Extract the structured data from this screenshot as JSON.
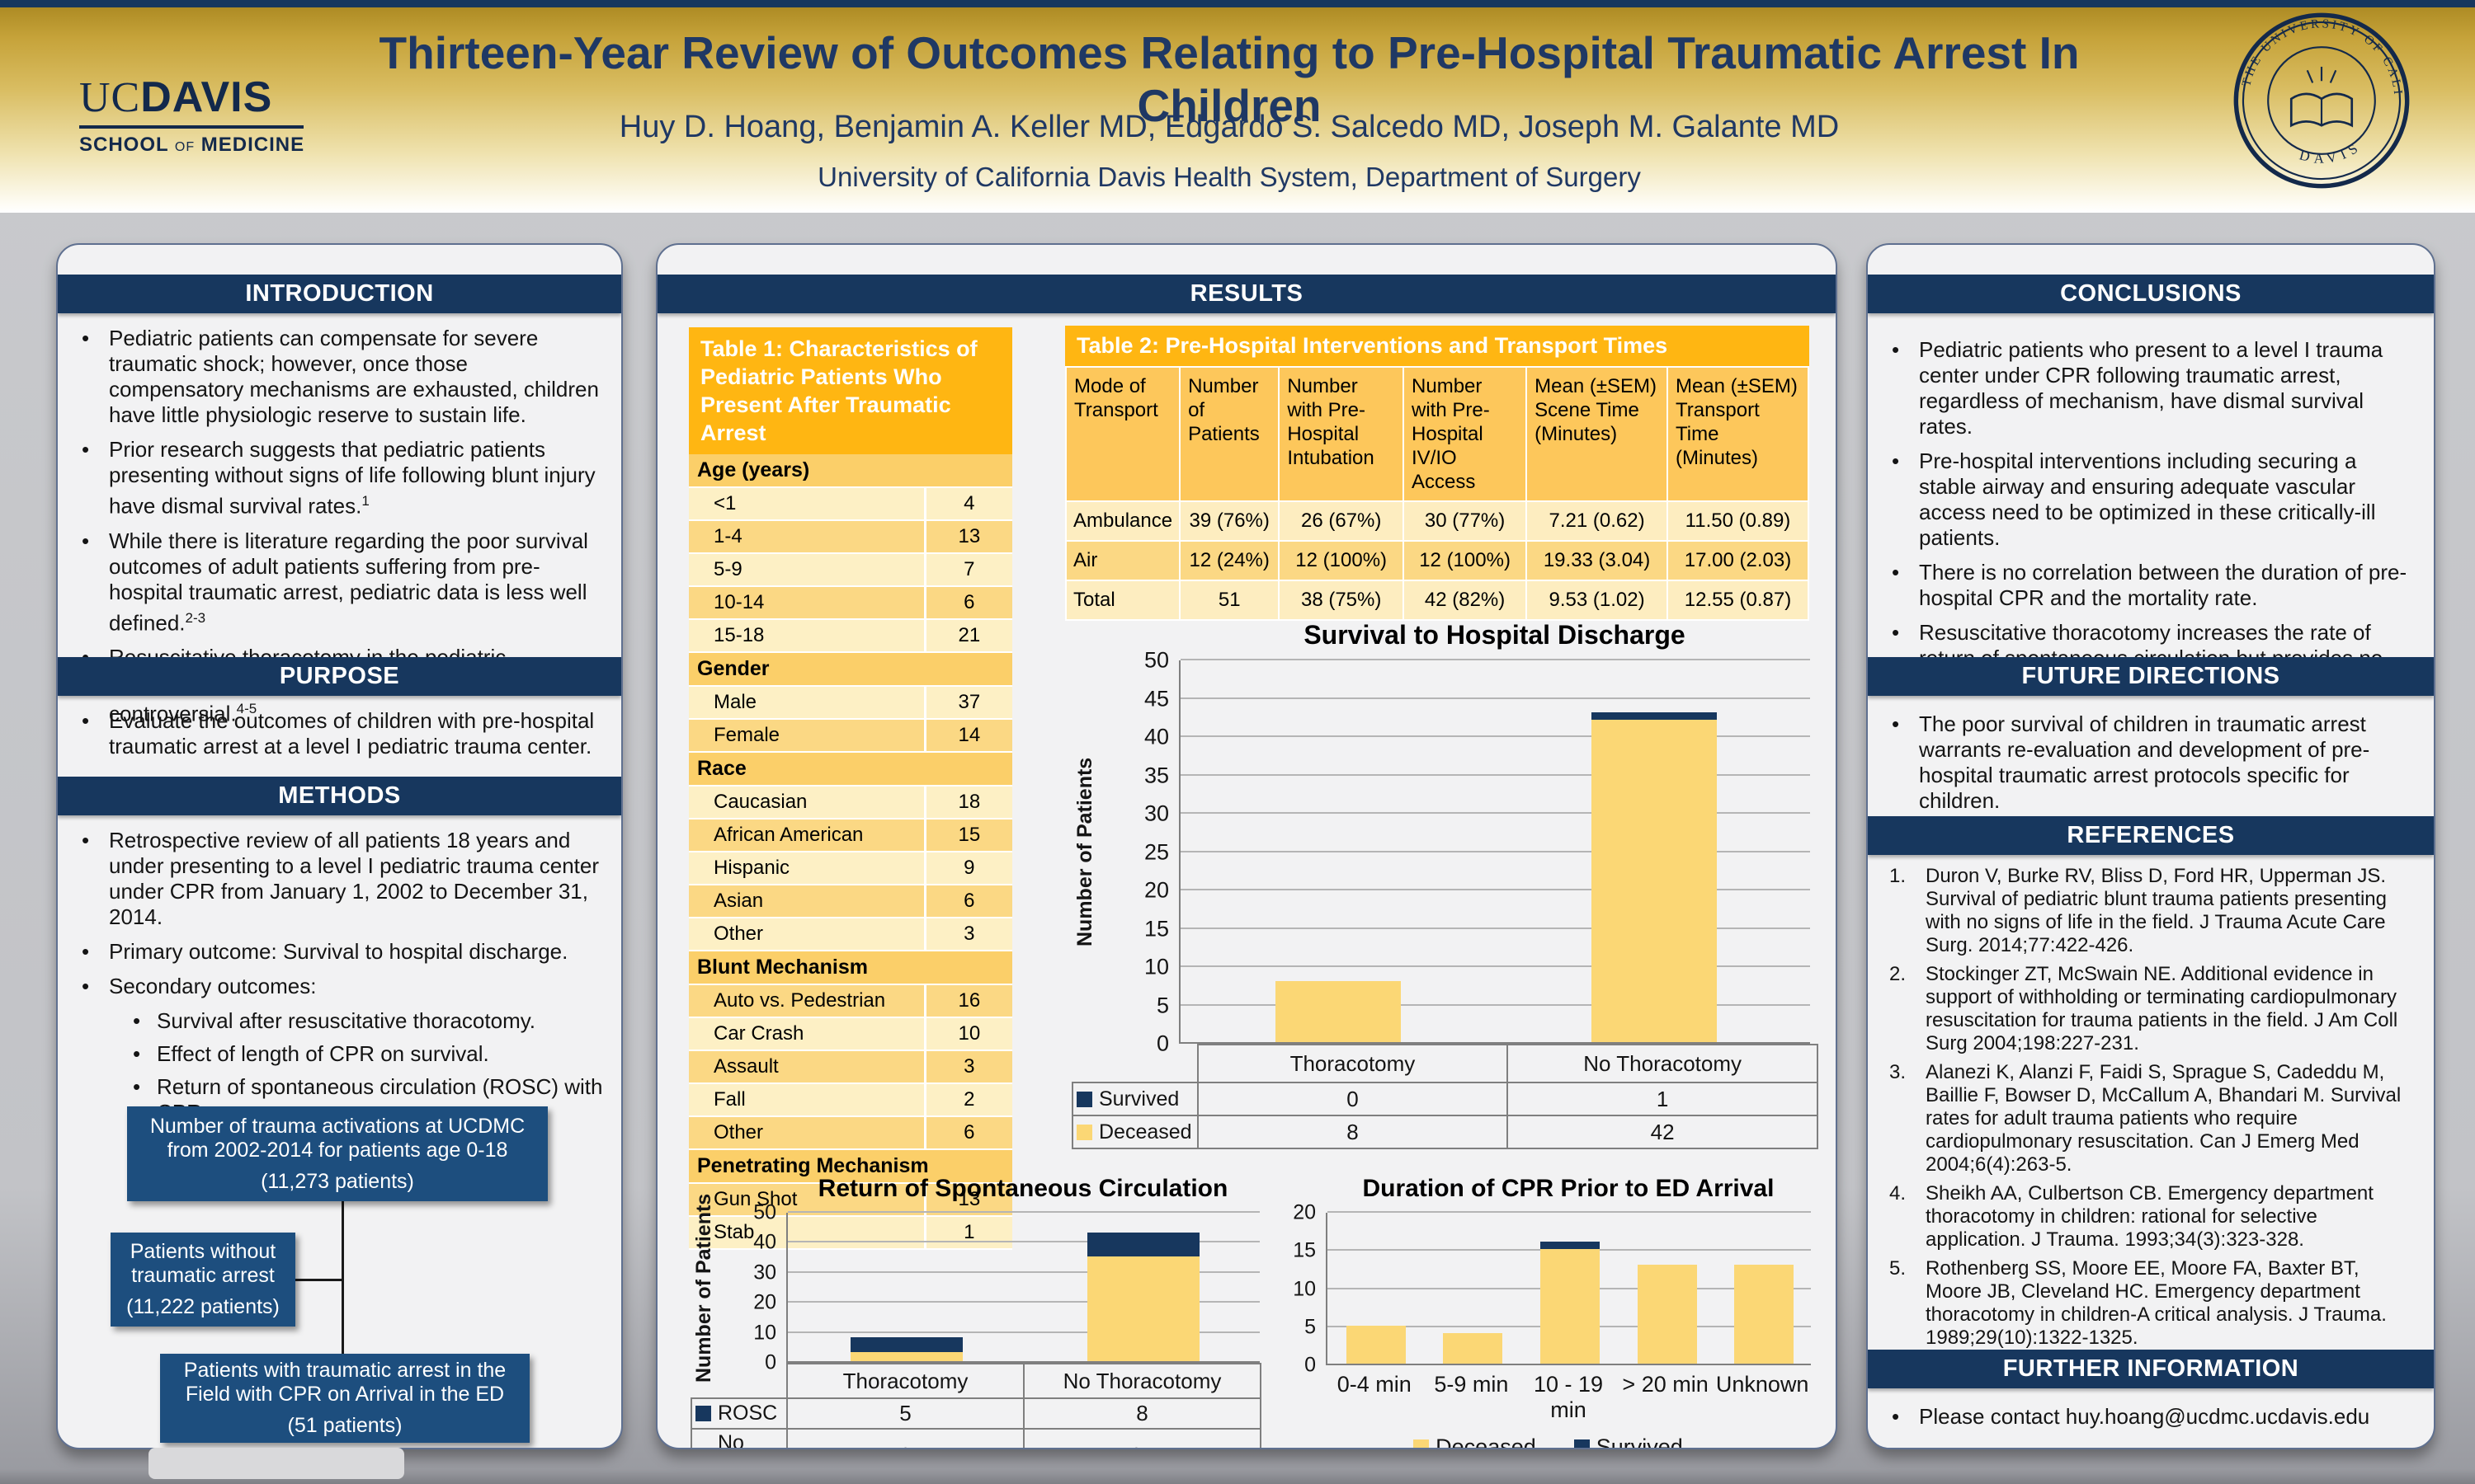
{
  "header": {
    "title": "Thirteen-Year Review of Outcomes Relating to Pre-Hospital Traumatic Arrest In Children",
    "authors": "Huy D. Hoang, Benjamin A. Keller MD, Edgardo S. Salcedo MD, Joseph M. Galante MD",
    "affiliation": "University of California Davis Health System, Department of Surgery",
    "logo": {
      "uc": "UC",
      "davis": "DAVIS",
      "school": "SCHOOL",
      "of": "OF",
      "medicine": "MEDICINE"
    },
    "seal": {
      "ring_text": "THE UNIVERSITY OF CALIFORNIA",
      "bottom_text": "DAVIS"
    }
  },
  "colors": {
    "navy": "#17375E",
    "navy_box": "#1D4E7E",
    "title_navy": "#1F3864",
    "gold": "#FFB612",
    "amber_header": "#FDC75B",
    "subheader": "#FBCF69",
    "row_light": "#FDF0C5",
    "row_dark": "#FBD884",
    "bar_yellow": "#FBD775",
    "bar_navy": "#17375E"
  },
  "left": {
    "intro": {
      "title": "INTRODUCTION",
      "bullets": [
        {
          "text": "Pediatric patients can compensate for severe traumatic shock; however, once those compensatory mechanisms are exhausted, children have little physiologic reserve to sustain life."
        },
        {
          "text": "Prior research suggests that pediatric patients presenting without signs of life following blunt injury have dismal survival rates.",
          "sup": "1"
        },
        {
          "text": "While there is literature regarding the poor survival outcomes of adult patients suffering from pre-hospital traumatic arrest, pediatric data is less well defined.",
          "sup": "2-3"
        },
        {
          "text": "Resuscitative thoracotomy in the pediatric population is associated with poor outcomes and is controversial.",
          "sup": "4-5"
        }
      ]
    },
    "purpose": {
      "title": "PURPOSE",
      "bullets": [
        {
          "text": "Evaluate the outcomes of children with pre-hospital traumatic arrest at a level I pediatric trauma center."
        }
      ]
    },
    "methods": {
      "title": "METHODS",
      "bullets": [
        {
          "text": "Retrospective review of all patients 18 years and under presenting to a level I pediatric trauma center under CPR from January 1, 2002 to December 31, 2014."
        },
        {
          "text": "Primary outcome: Survival to hospital discharge."
        },
        {
          "text": "Secondary outcomes:",
          "subs": [
            "Survival after resuscitative thoracotomy.",
            "Effect of length of CPR on survival.",
            "Return of spontaneous circulation (ROSC) with CPR."
          ]
        }
      ]
    },
    "flowchart": {
      "box1": {
        "text": "Number of trauma activations at UCDMC from 2002-2014 for patients age 0-18",
        "count": "(11,273 patients)"
      },
      "box2": {
        "text": "Patients without traumatic arrest",
        "count": "(11,222 patients)"
      },
      "box3": {
        "text": "Patients with traumatic arrest in the Field with CPR on Arrival in the ED",
        "count": "(51 patients)"
      }
    }
  },
  "middle": {
    "results_title": "RESULTS",
    "table1": {
      "title": "Table 1: Characteristics of Pediatric Patients Who Present After Traumatic Arrest",
      "sections": [
        {
          "header": "Age (years)",
          "rows": [
            [
              "<1",
              "4"
            ],
            [
              "1-4",
              "13"
            ],
            [
              "5-9",
              "7"
            ],
            [
              "10-14",
              "6"
            ],
            [
              "15-18",
              "21"
            ]
          ]
        },
        {
          "header": "Gender",
          "rows": [
            [
              "Male",
              "37"
            ],
            [
              "Female",
              "14"
            ]
          ]
        },
        {
          "header": "Race",
          "rows": [
            [
              "Caucasian",
              "18"
            ],
            [
              "African American",
              "15"
            ],
            [
              "Hispanic",
              "9"
            ],
            [
              "Asian",
              "6"
            ],
            [
              "Other",
              "3"
            ]
          ]
        },
        {
          "header": "Blunt Mechanism",
          "rows": [
            [
              "Auto vs. Pedestrian",
              "16"
            ],
            [
              "Car Crash",
              "10"
            ],
            [
              "Assault",
              "3"
            ],
            [
              "Fall",
              "2"
            ],
            [
              "Other",
              "6"
            ]
          ]
        },
        {
          "header": "Penetrating Mechanism",
          "rows": [
            [
              "Gun Shot",
              "13"
            ],
            [
              "Stab",
              "1"
            ]
          ]
        }
      ]
    },
    "table2": {
      "title": "Table 2: Pre-Hospital Interventions and Transport Times",
      "col_headers": [
        "Mode of Transport",
        "Number of Patients",
        "Number with Pre-Hospital Intubation",
        "Number with Pre-Hospital IV/IO Access",
        "Mean (±SEM) Scene Time (Minutes)",
        "Mean (±SEM) Transport Time (Minutes)"
      ],
      "rows": [
        [
          "Ambulance",
          "39 (76%)",
          "26 (67%)",
          "30 (77%)",
          "7.21 (0.62)",
          "11.50 (0.89)"
        ],
        [
          "Air",
          "12 (24%)",
          "12 (100%)",
          "12 (100%)",
          "19.33 (3.04)",
          "17.00 (2.03)"
        ],
        [
          "Total",
          "51",
          "38 (75%)",
          "42 (82%)",
          "9.53 (1.02)",
          "12.55 (0.87)"
        ]
      ]
    }
  },
  "right": {
    "conclusions": {
      "title": "CONCLUSIONS",
      "bullets": [
        {
          "text": "Pediatric patients who present to a level I trauma center under CPR following traumatic arrest, regardless of mechanism, have dismal survival rates."
        },
        {
          "text": "Pre-hospital interventions including securing a stable airway and ensuring adequate vascular access need to be optimized in these critically-ill patients."
        },
        {
          "text": "There is no correlation between the duration of pre-hospital CPR and the mortality rate."
        },
        {
          "text": "Resuscitative thoracotomy increases the rate of return of spontaneous circulation but provides no additional survival benefit."
        }
      ]
    },
    "future": {
      "title": "FUTURE DIRECTIONS",
      "bullets": [
        {
          "text": "The poor survival of children in traumatic arrest warrants re-evaluation and development of pre-hospital traumatic arrest protocols specific for children."
        }
      ]
    },
    "references": {
      "title": "REFERENCES",
      "items": [
        "Duron V, Burke RV, Bliss D, Ford HR, Upperman JS. Survival of pediatric blunt trauma patients presenting with no signs of life in the field. J Trauma Acute Care Surg. 2014;77:422-426.",
        "Stockinger ZT, McSwain NE. Additional evidence in support of withholding or terminating cardiopulmonary resuscitation for trauma patients in the field. J Am Coll Surg 2004;198:227-231.",
        "Alanezi K, Alanzi F, Faidi S, Sprague S, Cadeddu M, Baillie F, Bowser D, McCallum A, Bhandari M. Survival rates for adult trauma patients who require cardiopulmonary resuscitation. Can J Emerg Med 2004;6(4):263-5.",
        "Sheikh AA, Culbertson CB. Emergency department thoracotomy in children: rational for selective application. J Trauma. 1993;34(3):323-328.",
        "Rothenberg SS, Moore EE, Moore FA, Baxter BT, Moore JB, Cleveland HC. Emergency department thoracotomy in children-A critical analysis. J Trauma. 1989;29(10):1322-1325."
      ]
    },
    "further": {
      "title": "FURTHER INFORMATION",
      "bullets": [
        {
          "text": "Please contact huy.hoang@ucdmc.ucdavis.edu"
        }
      ]
    }
  },
  "chart_data": [
    {
      "id": "survival",
      "type": "bar",
      "stacked": true,
      "title": "Survival to Hospital Discharge",
      "ylabel": "Number of Patients",
      "categories": [
        "Thoracotomy",
        "No Thoracotomy"
      ],
      "series": [
        {
          "name": "Deceased",
          "color": "#FBD775",
          "values": [
            8,
            42
          ]
        },
        {
          "name": "Survived",
          "color": "#17375E",
          "values": [
            0,
            1
          ]
        }
      ],
      "ylim": [
        0,
        50
      ],
      "ytick_step": 5,
      "grid": true,
      "legend_position": "table-below",
      "table_order": [
        "Survived",
        "Deceased"
      ]
    },
    {
      "id": "rosc",
      "type": "bar",
      "stacked": true,
      "title": "Return of Spontaneous Circulation",
      "ylabel": "Number of Patients",
      "categories": [
        "Thoracotomy",
        "No Thoracotomy"
      ],
      "series": [
        {
          "name": "No ROSC",
          "color": "#FBD775",
          "values": [
            3,
            35
          ]
        },
        {
          "name": "ROSC",
          "color": "#17375E",
          "values": [
            5,
            8
          ]
        }
      ],
      "ylim": [
        0,
        50
      ],
      "ytick_step": 10,
      "grid": true,
      "legend_position": "table-below",
      "table_order": [
        "ROSC",
        "No ROSC"
      ]
    },
    {
      "id": "cpr",
      "type": "bar",
      "stacked": true,
      "title": "Duration of CPR Prior to ED Arrival",
      "ylabel": "",
      "categories": [
        "0-4 min",
        "5-9 min",
        "10 - 19 min",
        "> 20 min",
        "Unknown"
      ],
      "series": [
        {
          "name": "Deceased",
          "color": "#FBD775",
          "values": [
            5,
            4,
            15,
            13,
            13
          ]
        },
        {
          "name": "Survived",
          "color": "#17375E",
          "values": [
            0,
            0,
            1,
            0,
            0
          ]
        }
      ],
      "ylim": [
        0,
        20
      ],
      "ytick_step": 5,
      "grid": true,
      "legend_position": "bottom"
    }
  ]
}
